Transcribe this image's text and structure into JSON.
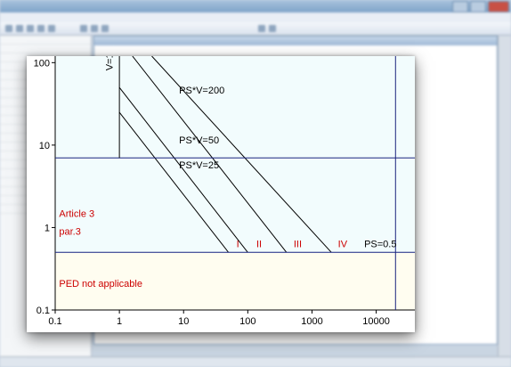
{
  "chart_data": {
    "type": "line",
    "xscale": "log",
    "yscale": "log",
    "xlim": [
      0.1,
      40000
    ],
    "ylim": [
      0.1,
      120
    ],
    "x_ticks": [
      {
        "value": 0.1,
        "label": "0.1"
      },
      {
        "value": 1,
        "label": "1"
      },
      {
        "value": 10,
        "label": "10"
      },
      {
        "value": 100,
        "label": "100"
      },
      {
        "value": 1000,
        "label": "1000"
      },
      {
        "value": 10000,
        "label": "10000"
      }
    ],
    "y_ticks": [
      {
        "value": 0.1,
        "label": "0.1"
      },
      {
        "value": 1,
        "label": "1"
      },
      {
        "value": 10,
        "label": "10"
      },
      {
        "value": 100,
        "label": "100"
      }
    ],
    "hlines": [
      {
        "y": 0.5
      },
      {
        "y": 7
      }
    ],
    "vlines": [
      {
        "x": 1,
        "y_from": 7,
        "y_to": 120
      },
      {
        "x": 20000
      }
    ],
    "series": [
      {
        "name": "PS*V=25",
        "points": [
          [
            1,
            25
          ],
          [
            50,
            0.5
          ]
        ]
      },
      {
        "name": "PS*V=50",
        "points": [
          [
            1,
            50
          ],
          [
            100,
            0.5
          ]
        ]
      },
      {
        "name": "PS*V=200",
        "points": [
          [
            1.6,
            120
          ],
          [
            400,
            0.5
          ]
        ]
      },
      {
        "name": "",
        "points": [
          [
            3.2,
            120
          ],
          [
            2000,
            0.5
          ]
        ]
      }
    ],
    "category_labels": [
      {
        "text": "I",
        "x": 70,
        "y": 0.58
      },
      {
        "text": "II",
        "x": 150,
        "y": 0.58
      },
      {
        "text": "III",
        "x": 600,
        "y": 0.58
      },
      {
        "text": "IV",
        "x": 3000,
        "y": 0.58
      }
    ],
    "annotations": [
      {
        "text": "V=1",
        "x": 0.78,
        "y": 80,
        "rotate": -90,
        "color": "#000000"
      },
      {
        "text": "PS*V=200",
        "x": 8.5,
        "y": 42,
        "color": "#000000"
      },
      {
        "text": "PS*V=50",
        "x": 8.5,
        "y": 10.5,
        "color": "#000000"
      },
      {
        "text": "PS*V=25",
        "x": 8.5,
        "y": 5.2,
        "color": "#000000"
      },
      {
        "text": "PS=0.5",
        "x": 6500,
        "y": 0.58,
        "color": "#000000"
      },
      {
        "text": "Article 3",
        "x": 0.115,
        "y": 1.35,
        "color": "#cc0000"
      },
      {
        "text": "par.3",
        "x": 0.115,
        "y": 0.82,
        "color": "#cc0000"
      },
      {
        "text": "PED not applicable",
        "x": 0.115,
        "y": 0.19,
        "color": "#cc0000"
      }
    ],
    "colors": {
      "grid_line": "#1a237e",
      "curve": "#000000",
      "region_label": "#cc0000",
      "background_top": "#f2fcfd",
      "background_bottom": "#fffdf0"
    },
    "grid": false,
    "legend": "none"
  }
}
